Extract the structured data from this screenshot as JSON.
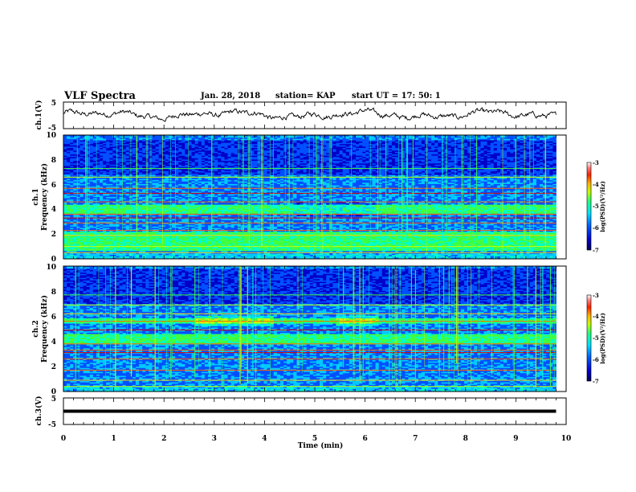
{
  "header": {
    "title": "VLF Spectra",
    "date": "Jan. 28, 2018",
    "station": "station= KAP",
    "start": "start  UT  =   17: 50: 1"
  },
  "chart_data": [
    {
      "type": "line",
      "panel": "ch1-waveform",
      "ylabel": "ch.1(V)",
      "yticks": [
        "5",
        "-5"
      ],
      "ylim": [
        -5,
        5
      ],
      "xlim": [
        0,
        10
      ],
      "data_xmax": 9.8,
      "trace_color": "#000000"
    },
    {
      "type": "heatmap",
      "panel": "ch1-spectrogram",
      "ylabel_channel": "ch.1",
      "ylabel": "Frequency (kHz)",
      "yticks": [
        "0",
        "2",
        "4",
        "6",
        "8",
        "10"
      ],
      "ylim": [
        0,
        10
      ],
      "xlim": [
        0,
        10
      ],
      "data_xmax": 9.8,
      "colorbar_label": "log(PSD)(V²/Hz)",
      "colorbar_ticks": [
        "-3",
        "-4",
        "-5",
        "-6",
        "-7"
      ],
      "colorbar_range": [
        -7,
        -3
      ],
      "bright_band_khz": [
        [
          0.6,
          2.2
        ],
        [
          3.6,
          4.4
        ]
      ],
      "quiet_band_khz": [
        [
          6.8,
          9.6
        ]
      ]
    },
    {
      "type": "heatmap",
      "panel": "ch2-spectrogram",
      "ylabel_channel": "ch.2",
      "ylabel": "Frequency (kHz)",
      "yticks": [
        "0",
        "2",
        "4",
        "6",
        "8",
        "10"
      ],
      "ylim": [
        0,
        10
      ],
      "xlim": [
        0,
        10
      ],
      "data_xmax": 9.8,
      "colorbar_label": "log(PSD)(V²/Hz)",
      "colorbar_ticks": [
        "-3",
        "-4",
        "-5",
        "-6",
        "-7"
      ],
      "colorbar_range": [
        -7,
        -3
      ],
      "bright_band_khz": [
        [
          3.8,
          4.6
        ],
        [
          5.4,
          5.8
        ]
      ],
      "quiet_band_khz": [
        [
          7.0,
          9.8
        ]
      ]
    },
    {
      "type": "line",
      "panel": "ch3-waveform",
      "ylabel": "ch.3(V)",
      "yticks": [
        "5",
        "-5"
      ],
      "ylim": [
        -5,
        5
      ],
      "xlim": [
        0,
        10
      ],
      "data_xmax": 9.8,
      "constant_value": 0,
      "trace_color": "#000000"
    }
  ],
  "xaxis": {
    "label": "Time (min)",
    "ticks": [
      "0",
      "1",
      "2",
      "3",
      "4",
      "5",
      "6",
      "7",
      "8",
      "9",
      "10"
    ]
  },
  "colormap": [
    "#000060",
    "#0000c8",
    "#0050ff",
    "#00c8ff",
    "#00ffc8",
    "#40ff40",
    "#c8ff00",
    "#ffd000",
    "#ff6000",
    "#e00000",
    "#ffffff"
  ]
}
